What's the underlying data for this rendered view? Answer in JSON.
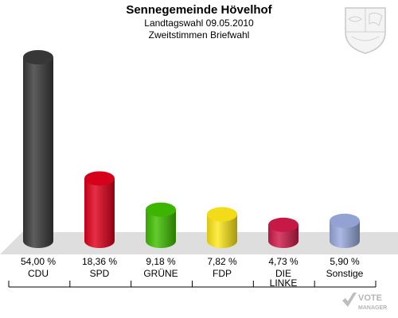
{
  "header": {
    "title": "Sennegemeinde Hövelhof",
    "subtitle_1": "Landtagswahl 09.05.2010",
    "subtitle_2": "Zweitstimmen Briefwahl"
  },
  "logo": {
    "brand_text_1": "VOTE",
    "brand_text_2": "MANAGER",
    "crest": "nrw-coat-of-arms-icon"
  },
  "chart_data": {
    "type": "bar",
    "categories": [
      "CDU",
      "SPD",
      "GRÜNE",
      "FDP",
      "DIE LINKE",
      "Sonstige"
    ],
    "values": [
      54.0,
      18.36,
      9.18,
      7.82,
      4.73,
      5.9
    ],
    "value_labels": [
      "54,00 %",
      "18,36 %",
      "9,18 %",
      "7,82 %",
      "4,73 %",
      "5,90 %"
    ],
    "colors": [
      "#3a3a3a",
      "#e0001b",
      "#3fbf00",
      "#ffe81a",
      "#d01a4a",
      "#9aaade"
    ],
    "ylim": [
      0,
      54
    ],
    "grid": false,
    "title": "Sennegemeinde Hövelhof"
  }
}
